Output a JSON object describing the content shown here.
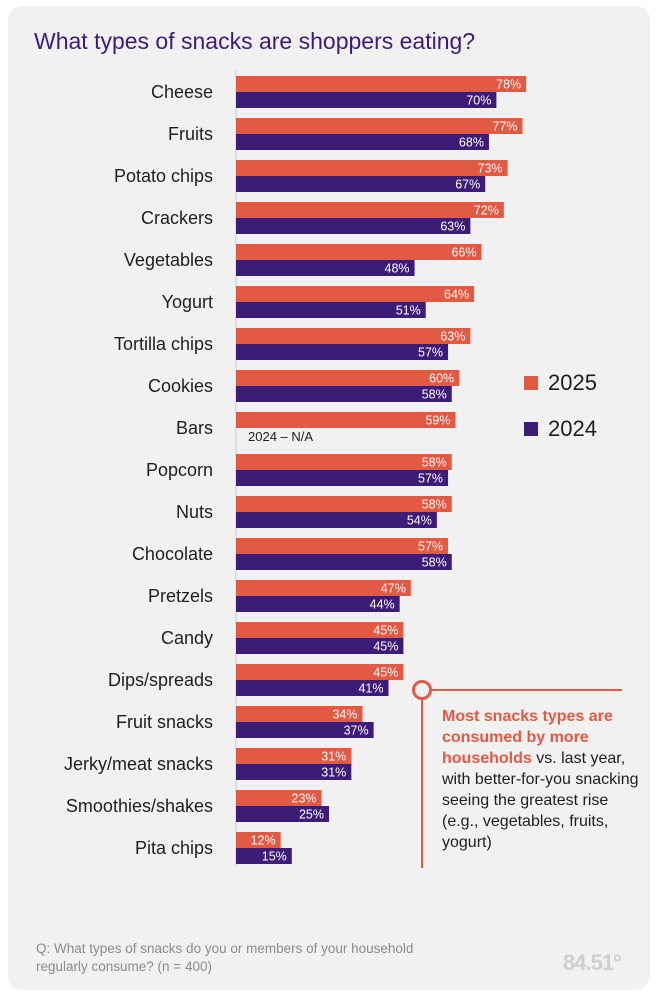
{
  "title": "What types of snacks are shoppers eating?",
  "colors": {
    "s2025": "#e35a44",
    "s2024": "#3d1c78",
    "title": "#3d1c78",
    "axis": "#c9c9c9"
  },
  "legend": [
    {
      "label": "2025",
      "color": "#e35a44"
    },
    {
      "label": "2024",
      "color": "#3d1c78"
    }
  ],
  "chart_data": {
    "type": "bar",
    "orientation": "horizontal",
    "title": "What types of snacks are shoppers eating?",
    "categories": [
      "Cheese",
      "Fruits",
      "Potato chips",
      "Crackers",
      "Vegetables",
      "Yogurt",
      "Tortilla chips",
      "Cookies",
      "Bars",
      "Popcorn",
      "Nuts",
      "Chocolate",
      "Pretzels",
      "Candy",
      "Dips/spreads",
      "Fruit snacks",
      "Jerky/meat snacks",
      "Smoothies/shakes",
      "Pita chips"
    ],
    "series": [
      {
        "name": "2025",
        "values": [
          78,
          77,
          73,
          72,
          66,
          64,
          63,
          60,
          59,
          58,
          58,
          57,
          47,
          45,
          45,
          34,
          31,
          23,
          12
        ]
      },
      {
        "name": "2024",
        "values": [
          70,
          68,
          67,
          63,
          48,
          51,
          57,
          58,
          null,
          57,
          54,
          58,
          44,
          45,
          41,
          37,
          31,
          25,
          15
        ]
      }
    ],
    "value_suffix": "%",
    "missing_label": "2024 – N/A",
    "xlim": [
      0,
      100
    ],
    "legend_position": "right"
  },
  "callout": {
    "highlight": "Most snacks types are consumed by more households",
    "text": " vs. last year, with better-for-you snacking seeing the greatest rise (e.g., vegetables, fruits, yogurt)"
  },
  "footnote": "Q: What types of snacks do you or members of your household regularly consume? (n = 400)",
  "logo": "84.51°"
}
